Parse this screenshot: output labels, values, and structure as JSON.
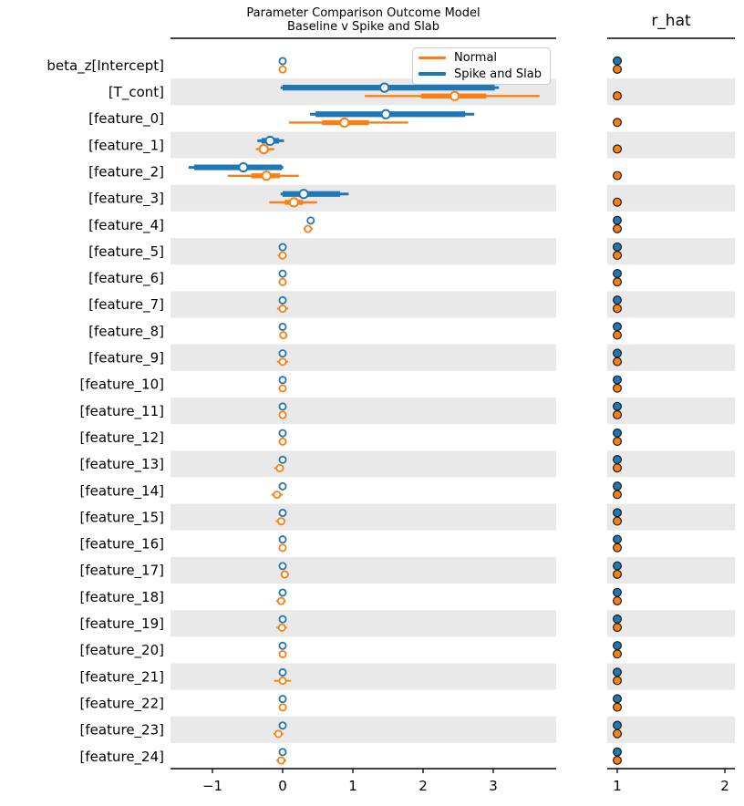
{
  "figure": {
    "title_line1": "Parameter Comparison Outcome Model",
    "title_line2": "Baseline v Spike and Slab",
    "rhat_title": "r_hat",
    "legend": [
      {
        "label": "Normal",
        "color": "#ff7f0e"
      },
      {
        "label": "Spike and Slab",
        "color": "#1f77b4"
      }
    ],
    "colors": {
      "normal": "#ff7f0e",
      "spike": "#1f77b4",
      "band": "#e9e9e9",
      "axis": "#000000",
      "dot_edge": "#1a1a1a",
      "median_dot_fill": "#ffffff"
    }
  },
  "chart_data": {
    "type": "forest",
    "title": "Parameter Comparison Outcome Model",
    "subtitle": "Baseline v Spike and Slab",
    "legend_entries": [
      "Normal",
      "Spike and Slab"
    ],
    "legend_position": "upper right of forest panel",
    "grid": false,
    "panels": [
      {
        "name": "forest",
        "xticks": [
          "−1",
          "0",
          "1",
          "2",
          "3"
        ],
        "xtick_values": [
          -1,
          0,
          1,
          2,
          3
        ],
        "xlim": [
          -1.6,
          3.9
        ]
      },
      {
        "name": "r_hat",
        "xticks": [
          "1",
          "2"
        ],
        "xtick_values": [
          1,
          2
        ],
        "xlim": [
          0.9,
          2.1
        ]
      }
    ],
    "rows": [
      {
        "label": "beta_z[Intercept]",
        "shaded": false,
        "spike": {
          "median": 0.0,
          "hdi": null,
          "iqr": null
        },
        "normal": {
          "median": 0.0,
          "hdi": [
            -0.05,
            0.05
          ],
          "iqr": null
        },
        "rhat": {
          "spike": 1.0,
          "normal": 1.0
        }
      },
      {
        "label": "[T_cont]",
        "shaded": true,
        "spike": {
          "median": 1.45,
          "hdi": [
            -0.03,
            3.08
          ],
          "iqr": [
            0.0,
            3.02
          ]
        },
        "normal": {
          "median": 2.45,
          "hdi": [
            1.17,
            3.66
          ],
          "iqr": [
            1.97,
            2.9
          ]
        },
        "rhat": {
          "spike": null,
          "normal": 1.0
        }
      },
      {
        "label": "[feature_0]",
        "shaded": false,
        "spike": {
          "median": 1.47,
          "hdi": [
            0.39,
            2.73
          ],
          "iqr": [
            0.47,
            2.6
          ]
        },
        "normal": {
          "median": 0.88,
          "hdi": [
            0.09,
            1.79
          ],
          "iqr": [
            0.56,
            1.23
          ]
        },
        "rhat": {
          "spike": null,
          "normal": 1.0
        }
      },
      {
        "label": "[feature_1]",
        "shaded": true,
        "spike": {
          "median": -0.18,
          "hdi": [
            -0.36,
            0.02
          ],
          "iqr": [
            -0.3,
            -0.05
          ]
        },
        "normal": {
          "median": -0.27,
          "hdi": [
            -0.38,
            -0.12
          ],
          "iqr": [
            -0.33,
            -0.2
          ]
        },
        "rhat": {
          "spike": null,
          "normal": 1.0
        }
      },
      {
        "label": "[feature_2]",
        "shaded": false,
        "spike": {
          "median": -0.56,
          "hdi": [
            -1.34,
            0.01
          ],
          "iqr": [
            -1.26,
            -0.01
          ]
        },
        "normal": {
          "median": -0.23,
          "hdi": [
            -0.78,
            0.23
          ],
          "iqr": [
            -0.45,
            -0.04
          ]
        },
        "rhat": {
          "spike": null,
          "normal": 1.0
        }
      },
      {
        "label": "[feature_3]",
        "shaded": true,
        "spike": {
          "median": 0.3,
          "hdi": [
            -0.03,
            0.94
          ],
          "iqr": [
            0.0,
            0.82
          ]
        },
        "normal": {
          "median": 0.16,
          "hdi": [
            -0.19,
            0.49
          ],
          "iqr": [
            0.03,
            0.29
          ]
        },
        "rhat": {
          "spike": null,
          "normal": 1.0
        }
      },
      {
        "label": "[feature_4]",
        "shaded": false,
        "spike": {
          "median": 0.4,
          "hdi": null,
          "iqr": null
        },
        "normal": {
          "median": 0.36,
          "hdi": [
            0.3,
            0.43
          ],
          "iqr": null
        },
        "rhat": {
          "spike": 1.0,
          "normal": 1.0
        }
      },
      {
        "label": "[feature_5]",
        "shaded": true,
        "spike": {
          "median": 0.0,
          "hdi": null,
          "iqr": null
        },
        "normal": {
          "median": 0.0,
          "hdi": [
            -0.07,
            0.05
          ],
          "iqr": null
        },
        "rhat": {
          "spike": 1.0,
          "normal": 1.0
        }
      },
      {
        "label": "[feature_6]",
        "shaded": false,
        "spike": {
          "median": 0.0,
          "hdi": null,
          "iqr": null
        },
        "normal": {
          "median": 0.0,
          "hdi": [
            -0.06,
            0.04
          ],
          "iqr": null
        },
        "rhat": {
          "spike": 1.0,
          "normal": 1.0
        }
      },
      {
        "label": "[feature_7]",
        "shaded": true,
        "spike": {
          "median": 0.0,
          "hdi": null,
          "iqr": null
        },
        "normal": {
          "median": 0.0,
          "hdi": [
            -0.08,
            0.08
          ],
          "iqr": null
        },
        "rhat": {
          "spike": 1.0,
          "normal": 1.0
        }
      },
      {
        "label": "[feature_8]",
        "shaded": false,
        "spike": {
          "median": 0.0,
          "hdi": null,
          "iqr": null
        },
        "normal": {
          "median": 0.01,
          "hdi": [
            -0.04,
            0.07
          ],
          "iqr": null
        },
        "rhat": {
          "spike": 1.0,
          "normal": 1.0
        }
      },
      {
        "label": "[feature_9]",
        "shaded": true,
        "spike": {
          "median": 0.0,
          "hdi": null,
          "iqr": null
        },
        "normal": {
          "median": 0.0,
          "hdi": [
            -0.08,
            0.08
          ],
          "iqr": null
        },
        "rhat": {
          "spike": 1.0,
          "normal": 1.0
        }
      },
      {
        "label": "[feature_10]",
        "shaded": false,
        "spike": {
          "median": 0.0,
          "hdi": null,
          "iqr": null
        },
        "normal": {
          "median": 0.0,
          "hdi": [
            -0.06,
            0.05
          ],
          "iqr": null
        },
        "rhat": {
          "spike": 1.0,
          "normal": 1.0
        }
      },
      {
        "label": "[feature_11]",
        "shaded": true,
        "spike": {
          "median": 0.0,
          "hdi": null,
          "iqr": null
        },
        "normal": {
          "median": 0.0,
          "hdi": [
            -0.05,
            0.05
          ],
          "iqr": null
        },
        "rhat": {
          "spike": 1.0,
          "normal": 1.0
        }
      },
      {
        "label": "[feature_12]",
        "shaded": false,
        "spike": {
          "median": 0.0,
          "hdi": null,
          "iqr": null
        },
        "normal": {
          "median": 0.0,
          "hdi": null,
          "iqr": null
        },
        "rhat": {
          "spike": 1.0,
          "normal": 1.0
        }
      },
      {
        "label": "[feature_13]",
        "shaded": true,
        "spike": {
          "median": 0.0,
          "hdi": null,
          "iqr": null
        },
        "normal": {
          "median": -0.04,
          "hdi": [
            -0.12,
            0.02
          ],
          "iqr": null
        },
        "rhat": {
          "spike": 1.0,
          "normal": 1.0
        }
      },
      {
        "label": "[feature_14]",
        "shaded": false,
        "spike": {
          "median": 0.0,
          "hdi": null,
          "iqr": null
        },
        "normal": {
          "median": -0.08,
          "hdi": [
            -0.16,
            0.0
          ],
          "iqr": null
        },
        "rhat": {
          "spike": 1.0,
          "normal": 1.0
        }
      },
      {
        "label": "[feature_15]",
        "shaded": true,
        "spike": {
          "median": 0.0,
          "hdi": null,
          "iqr": null
        },
        "normal": {
          "median": -0.02,
          "hdi": [
            -0.1,
            0.04
          ],
          "iqr": null
        },
        "rhat": {
          "spike": 1.0,
          "normal": 1.0
        }
      },
      {
        "label": "[feature_16]",
        "shaded": false,
        "spike": {
          "median": 0.0,
          "hdi": null,
          "iqr": null
        },
        "normal": {
          "median": 0.0,
          "hdi": null,
          "iqr": null
        },
        "rhat": {
          "spike": 1.0,
          "normal": 1.0
        }
      },
      {
        "label": "[feature_17]",
        "shaded": true,
        "spike": {
          "median": 0.0,
          "hdi": null,
          "iqr": null
        },
        "normal": {
          "median": 0.03,
          "hdi": [
            -0.03,
            0.09
          ],
          "iqr": null
        },
        "rhat": {
          "spike": 1.0,
          "normal": 1.0
        }
      },
      {
        "label": "[feature_18]",
        "shaded": false,
        "spike": {
          "median": 0.0,
          "hdi": null,
          "iqr": null
        },
        "normal": {
          "median": -0.02,
          "hdi": [
            -0.09,
            0.04
          ],
          "iqr": null
        },
        "rhat": {
          "spike": 1.0,
          "normal": 1.0
        }
      },
      {
        "label": "[feature_19]",
        "shaded": true,
        "spike": {
          "median": 0.0,
          "hdi": null,
          "iqr": null
        },
        "normal": {
          "median": -0.01,
          "hdi": [
            -0.09,
            0.06
          ],
          "iqr": null
        },
        "rhat": {
          "spike": 1.0,
          "normal": 1.0
        }
      },
      {
        "label": "[feature_20]",
        "shaded": false,
        "spike": {
          "median": 0.0,
          "hdi": null,
          "iqr": null
        },
        "normal": {
          "median": 0.0,
          "hdi": null,
          "iqr": null
        },
        "rhat": {
          "spike": 1.0,
          "normal": 1.0
        }
      },
      {
        "label": "[feature_21]",
        "shaded": true,
        "spike": {
          "median": 0.0,
          "hdi": null,
          "iqr": null
        },
        "normal": {
          "median": 0.0,
          "hdi": [
            -0.12,
            0.12
          ],
          "iqr": null
        },
        "rhat": {
          "spike": 1.0,
          "normal": 1.0
        }
      },
      {
        "label": "[feature_22]",
        "shaded": false,
        "spike": {
          "median": 0.0,
          "hdi": null,
          "iqr": null
        },
        "normal": {
          "median": 0.0,
          "hdi": null,
          "iqr": null
        },
        "rhat": {
          "spike": 1.0,
          "normal": 1.0
        }
      },
      {
        "label": "[feature_23]",
        "shaded": true,
        "spike": {
          "median": 0.0,
          "hdi": null,
          "iqr": null
        },
        "normal": {
          "median": -0.06,
          "hdi": [
            -0.13,
            0.01
          ],
          "iqr": null
        },
        "rhat": {
          "spike": 1.0,
          "normal": 1.0
        }
      },
      {
        "label": "[feature_24]",
        "shaded": false,
        "spike": {
          "median": 0.0,
          "hdi": null,
          "iqr": null
        },
        "normal": {
          "median": -0.02,
          "hdi": [
            -0.09,
            0.05
          ],
          "iqr": null
        },
        "rhat": {
          "spike": 1.0,
          "normal": 1.0
        }
      }
    ]
  }
}
